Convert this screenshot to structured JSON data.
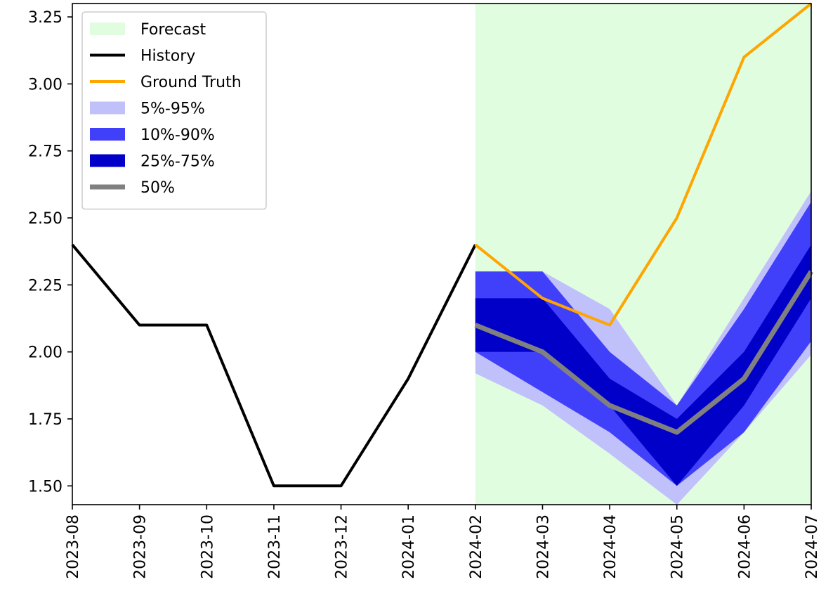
{
  "chart_data": {
    "type": "line",
    "categories": [
      "2023-08",
      "2023-09",
      "2023-10",
      "2023-11",
      "2023-12",
      "2024-01",
      "2024-02",
      "2024-03",
      "2024-04",
      "2024-05",
      "2024-06",
      "2024-07"
    ],
    "ylim": [
      1.43,
      3.3
    ],
    "yticks": [
      1.5,
      1.75,
      2.0,
      2.25,
      2.5,
      2.75,
      3.0,
      3.25
    ],
    "ytick_labels": [
      "1.50",
      "1.75",
      "2.00",
      "2.25",
      "2.50",
      "2.75",
      "3.00",
      "3.25"
    ],
    "forecast_region": {
      "start": "2024-02",
      "end": "2024-07",
      "color": "#e0fde0"
    },
    "history": {
      "name": "History",
      "color": "#000000",
      "x": [
        "2023-08",
        "2023-09",
        "2023-10",
        "2023-11",
        "2023-12",
        "2024-01",
        "2024-02"
      ],
      "values": [
        2.4,
        2.1,
        2.1,
        1.5,
        1.5,
        1.9,
        2.4
      ]
    },
    "ground_truth": {
      "name": "Ground Truth",
      "color": "#ffa500",
      "x": [
        "2024-02",
        "2024-03",
        "2024-04",
        "2024-05",
        "2024-06",
        "2024-07"
      ],
      "values": [
        2.4,
        2.2,
        2.1,
        2.5,
        3.1,
        3.3
      ]
    },
    "forecast_x": [
      "2024-02",
      "2024-03",
      "2024-04",
      "2024-05",
      "2024-06",
      "2024-07"
    ],
    "bands": [
      {
        "name": "5%-95%",
        "color": "#c0c0fb",
        "lower": [
          1.92,
          1.8,
          1.62,
          1.43,
          1.7,
          1.99
        ],
        "upper": [
          2.3,
          2.3,
          2.16,
          1.8,
          2.2,
          2.6
        ]
      },
      {
        "name": "10%-90%",
        "color": "#4040fb",
        "lower": [
          2.0,
          1.85,
          1.7,
          1.5,
          1.7,
          2.04
        ],
        "upper": [
          2.3,
          2.3,
          2.0,
          1.8,
          2.16,
          2.56
        ]
      },
      {
        "name": "25%-75%",
        "color": "#0000c8",
        "lower": [
          2.0,
          2.0,
          1.8,
          1.5,
          1.8,
          2.2
        ],
        "upper": [
          2.2,
          2.2,
          1.9,
          1.75,
          2.0,
          2.4
        ]
      }
    ],
    "median": {
      "name": "50%",
      "color": "#808080",
      "values": [
        2.1,
        2.0,
        1.8,
        1.7,
        1.9,
        2.3
      ]
    },
    "legend": {
      "position": "top-left",
      "items": [
        {
          "label": "Forecast",
          "kind": "patch",
          "color": "#e0fde0"
        },
        {
          "label": "History",
          "kind": "line",
          "color": "#000000"
        },
        {
          "label": "Ground Truth",
          "kind": "line",
          "color": "#ffa500"
        },
        {
          "label": "5%-95%",
          "kind": "patch",
          "color": "#c0c0fb"
        },
        {
          "label": "10%-90%",
          "kind": "patch",
          "color": "#4040fb"
        },
        {
          "label": "25%-75%",
          "kind": "patch",
          "color": "#0000c8"
        },
        {
          "label": "50%",
          "kind": "thickline",
          "color": "#808080"
        }
      ]
    }
  }
}
